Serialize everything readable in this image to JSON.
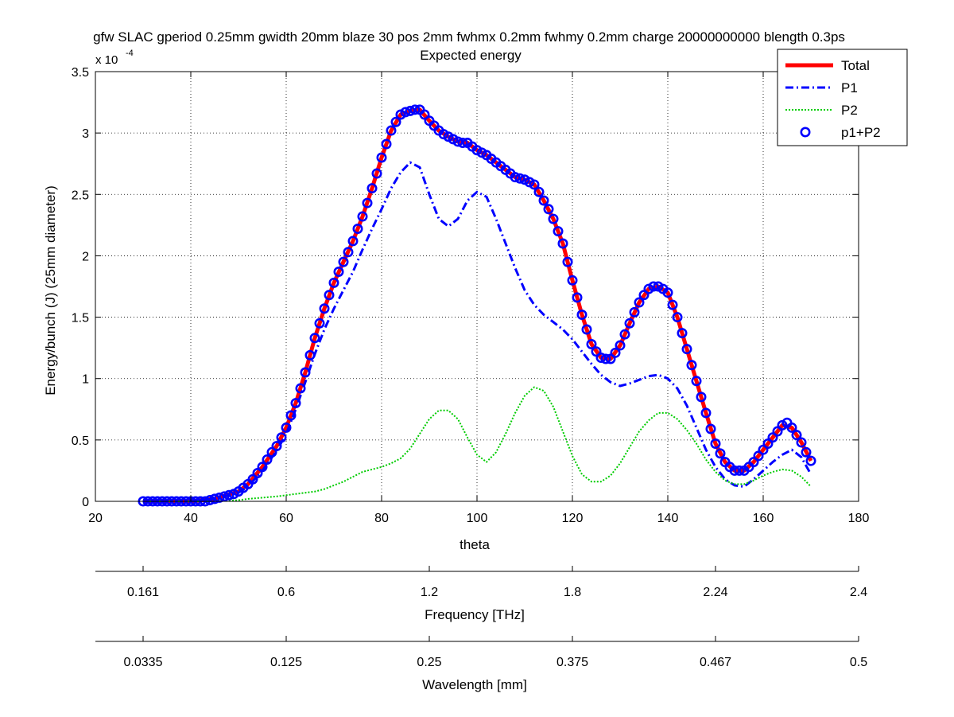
{
  "chart_data": {
    "type": "line",
    "title": "gfw SLAC gperiod 0.25mm gwidth 20mm blaze 30 pos 2mm fwhmx 0.2mm fwhmy 0.2mm charge 20000000000 blength 0.3ps",
    "subtitle": "Expected energy",
    "xlabel": "theta",
    "ylabel": "Energy/bunch (J)  (25mm diameter)",
    "y_exponent_label": "x 10",
    "y_exponent_power": "-4",
    "xlim": [
      20,
      180
    ],
    "ylim": [
      0,
      3.5
    ],
    "grid": true,
    "legend_position": "top-right",
    "x_ticks": [
      "20",
      "40",
      "60",
      "80",
      "100",
      "120",
      "140",
      "160",
      "180"
    ],
    "y_ticks": [
      "0",
      "0.5",
      "1",
      "1.5",
      "2",
      "2.5",
      "3",
      "3.5"
    ],
    "secondary_axes": [
      {
        "label": "Frequency [THz]",
        "ticks": [
          {
            "theta": 30,
            "label": "0.161"
          },
          {
            "theta": 60,
            "label": "0.6"
          },
          {
            "theta": 90,
            "label": "1.2"
          },
          {
            "theta": 120,
            "label": "1.8"
          },
          {
            "theta": 150,
            "label": "2.24"
          },
          {
            "theta": 180,
            "label": "2.4"
          }
        ]
      },
      {
        "label": "Wavelength [mm]",
        "ticks": [
          {
            "theta": 30,
            "label": "0.0335"
          },
          {
            "theta": 60,
            "label": "0.125"
          },
          {
            "theta": 90,
            "label": "0.25"
          },
          {
            "theta": 120,
            "label": "0.375"
          },
          {
            "theta": 150,
            "label": "0.467"
          },
          {
            "theta": 180,
            "label": "0.5"
          }
        ]
      }
    ],
    "series": [
      {
        "name": "Total",
        "color": "#ff0000",
        "style": "solid",
        "x": [
          30,
          40,
          45,
          50,
          52,
          55,
          58,
          60,
          62,
          64,
          66,
          68,
          70,
          72,
          74,
          76,
          78,
          80,
          82,
          84,
          86,
          88,
          90,
          92,
          94,
          96,
          98,
          100,
          102,
          104,
          106,
          108,
          110,
          112,
          114,
          116,
          118,
          120,
          122,
          124,
          126,
          128,
          130,
          132,
          134,
          136,
          138,
          140,
          142,
          144,
          146,
          148,
          150,
          152,
          154,
          156,
          158,
          160,
          162,
          164,
          166,
          168,
          170
        ],
        "y": [
          0,
          0,
          0.02,
          0.08,
          0.14,
          0.28,
          0.45,
          0.6,
          0.8,
          1.05,
          1.33,
          1.57,
          1.78,
          1.95,
          2.12,
          2.32,
          2.55,
          2.8,
          3.02,
          3.15,
          3.18,
          3.19,
          3.1,
          3.02,
          2.97,
          2.93,
          2.92,
          2.86,
          2.82,
          2.76,
          2.7,
          2.64,
          2.62,
          2.58,
          2.45,
          2.3,
          2.1,
          1.8,
          1.52,
          1.28,
          1.17,
          1.16,
          1.27,
          1.45,
          1.62,
          1.73,
          1.75,
          1.7,
          1.5,
          1.24,
          0.98,
          0.72,
          0.47,
          0.32,
          0.25,
          0.25,
          0.32,
          0.42,
          0.52,
          0.62,
          0.6,
          0.48,
          0.33
        ]
      },
      {
        "name": "P1",
        "color": "#0000ff",
        "style": "dashdot",
        "x": [
          30,
          40,
          45,
          50,
          52,
          55,
          58,
          60,
          62,
          64,
          66,
          68,
          70,
          72,
          74,
          76,
          78,
          80,
          82,
          84,
          86,
          88,
          90,
          92,
          94,
          96,
          98,
          100,
          102,
          104,
          106,
          108,
          110,
          112,
          114,
          116,
          118,
          120,
          122,
          124,
          126,
          128,
          130,
          132,
          134,
          136,
          138,
          140,
          142,
          144,
          146,
          148,
          150,
          152,
          154,
          156,
          158,
          160,
          162,
          164,
          166,
          168,
          170
        ],
        "y": [
          0,
          0,
          0.02,
          0.07,
          0.12,
          0.25,
          0.41,
          0.55,
          0.75,
          0.97,
          1.2,
          1.4,
          1.57,
          1.72,
          1.87,
          2.05,
          2.22,
          2.38,
          2.55,
          2.68,
          2.76,
          2.72,
          2.5,
          2.3,
          2.24,
          2.3,
          2.45,
          2.52,
          2.48,
          2.3,
          2.1,
          1.9,
          1.72,
          1.6,
          1.52,
          1.46,
          1.4,
          1.32,
          1.22,
          1.12,
          1.03,
          0.97,
          0.94,
          0.96,
          0.99,
          1.02,
          1.03,
          1.0,
          0.92,
          0.78,
          0.6,
          0.42,
          0.28,
          0.18,
          0.13,
          0.12,
          0.18,
          0.25,
          0.32,
          0.38,
          0.42,
          0.36,
          0.22
        ]
      },
      {
        "name": "P2",
        "color": "#00cc00",
        "style": "dotted",
        "x": [
          30,
          40,
          45,
          50,
          52,
          55,
          58,
          60,
          62,
          64,
          66,
          68,
          70,
          72,
          74,
          76,
          78,
          80,
          82,
          84,
          86,
          88,
          90,
          92,
          94,
          96,
          98,
          100,
          102,
          104,
          106,
          108,
          110,
          112,
          114,
          116,
          118,
          120,
          122,
          124,
          126,
          128,
          130,
          132,
          134,
          136,
          138,
          140,
          142,
          144,
          146,
          148,
          150,
          152,
          154,
          156,
          158,
          160,
          162,
          164,
          166,
          168,
          170
        ],
        "y": [
          0,
          0,
          0,
          0.01,
          0.02,
          0.03,
          0.04,
          0.05,
          0.06,
          0.07,
          0.08,
          0.1,
          0.13,
          0.16,
          0.2,
          0.24,
          0.26,
          0.28,
          0.31,
          0.35,
          0.43,
          0.55,
          0.67,
          0.74,
          0.74,
          0.67,
          0.52,
          0.38,
          0.32,
          0.4,
          0.55,
          0.72,
          0.86,
          0.93,
          0.9,
          0.77,
          0.57,
          0.37,
          0.22,
          0.16,
          0.16,
          0.21,
          0.31,
          0.44,
          0.57,
          0.66,
          0.72,
          0.72,
          0.67,
          0.58,
          0.47,
          0.34,
          0.24,
          0.17,
          0.14,
          0.14,
          0.17,
          0.21,
          0.24,
          0.26,
          0.25,
          0.2,
          0.12
        ]
      },
      {
        "name": "p1+P2",
        "color": "#0000ff",
        "style": "circles",
        "x": [
          30,
          31,
          32,
          33,
          34,
          35,
          36,
          37,
          38,
          39,
          40,
          41,
          42,
          43,
          44,
          45,
          46,
          47,
          48,
          49,
          50,
          51,
          52,
          53,
          54,
          55,
          56,
          57,
          58,
          59,
          60,
          61,
          62,
          63,
          64,
          65,
          66,
          67,
          68,
          69,
          70,
          71,
          72,
          73,
          74,
          75,
          76,
          77,
          78,
          79,
          80,
          81,
          82,
          83,
          84,
          85,
          86,
          87,
          88,
          89,
          90,
          91,
          92,
          93,
          94,
          95,
          96,
          97,
          98,
          99,
          100,
          101,
          102,
          103,
          104,
          105,
          106,
          107,
          108,
          109,
          110,
          111,
          112,
          113,
          114,
          115,
          116,
          117,
          118,
          119,
          120,
          121,
          122,
          123,
          124,
          125,
          126,
          127,
          128,
          129,
          130,
          131,
          132,
          133,
          134,
          135,
          136,
          137,
          138,
          139,
          140,
          141,
          142,
          143,
          144,
          145,
          146,
          147,
          148,
          149,
          150,
          151,
          152,
          153,
          154,
          155,
          156,
          157,
          158,
          159,
          160,
          161,
          162,
          163,
          164,
          165,
          166,
          167,
          168,
          169,
          170
        ],
        "y": [
          0,
          0,
          0,
          0,
          0,
          0,
          0,
          0,
          0,
          0,
          0,
          0,
          0,
          0,
          0.01,
          0.02,
          0.03,
          0.04,
          0.05,
          0.06,
          0.08,
          0.11,
          0.14,
          0.18,
          0.23,
          0.28,
          0.34,
          0.4,
          0.45,
          0.52,
          0.6,
          0.7,
          0.8,
          0.92,
          1.05,
          1.19,
          1.33,
          1.45,
          1.57,
          1.68,
          1.78,
          1.87,
          1.95,
          2.03,
          2.12,
          2.22,
          2.32,
          2.43,
          2.55,
          2.67,
          2.8,
          2.91,
          3.02,
          3.09,
          3.15,
          3.17,
          3.18,
          3.19,
          3.19,
          3.15,
          3.1,
          3.06,
          3.02,
          2.99,
          2.97,
          2.95,
          2.93,
          2.92,
          2.92,
          2.89,
          2.86,
          2.84,
          2.82,
          2.79,
          2.76,
          2.73,
          2.7,
          2.67,
          2.64,
          2.63,
          2.62,
          2.6,
          2.58,
          2.52,
          2.45,
          2.38,
          2.3,
          2.2,
          2.1,
          1.95,
          1.8,
          1.66,
          1.52,
          1.4,
          1.28,
          1.22,
          1.17,
          1.16,
          1.16,
          1.21,
          1.27,
          1.36,
          1.45,
          1.54,
          1.62,
          1.68,
          1.73,
          1.75,
          1.75,
          1.73,
          1.7,
          1.6,
          1.5,
          1.37,
          1.24,
          1.11,
          0.98,
          0.85,
          0.72,
          0.59,
          0.47,
          0.39,
          0.32,
          0.28,
          0.25,
          0.25,
          0.25,
          0.28,
          0.32,
          0.37,
          0.42,
          0.47,
          0.52,
          0.57,
          0.62,
          0.64,
          0.6,
          0.54,
          0.48,
          0.4,
          0.33
        ]
      }
    ]
  }
}
